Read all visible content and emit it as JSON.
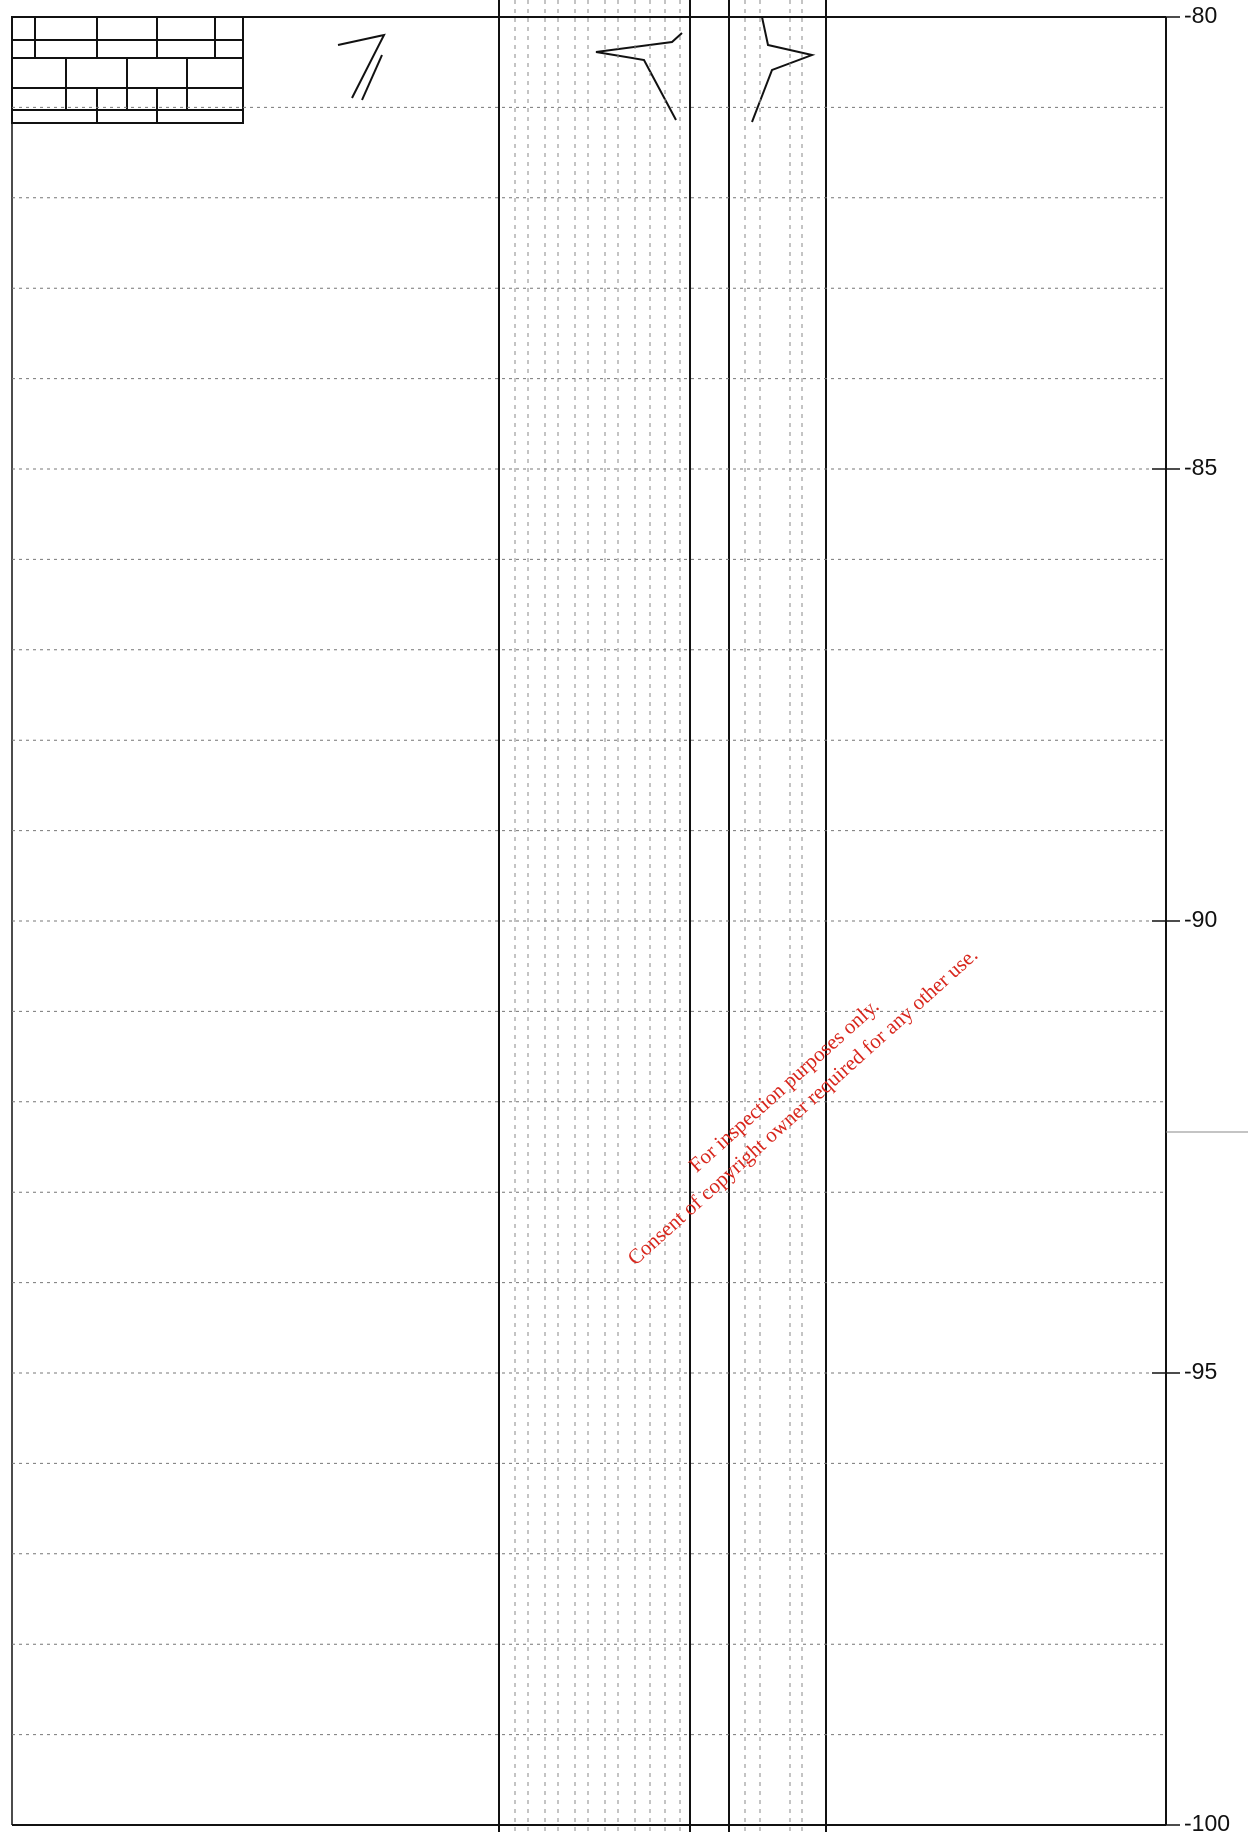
{
  "depth_axis": {
    "range": [
      -80,
      -100
    ],
    "ticks": [
      -80,
      -85,
      -90,
      -95,
      -100
    ]
  },
  "watermark": {
    "line1": "For inspection purposes only.",
    "line2": "Consent of copyright owner required for any other use."
  }
}
